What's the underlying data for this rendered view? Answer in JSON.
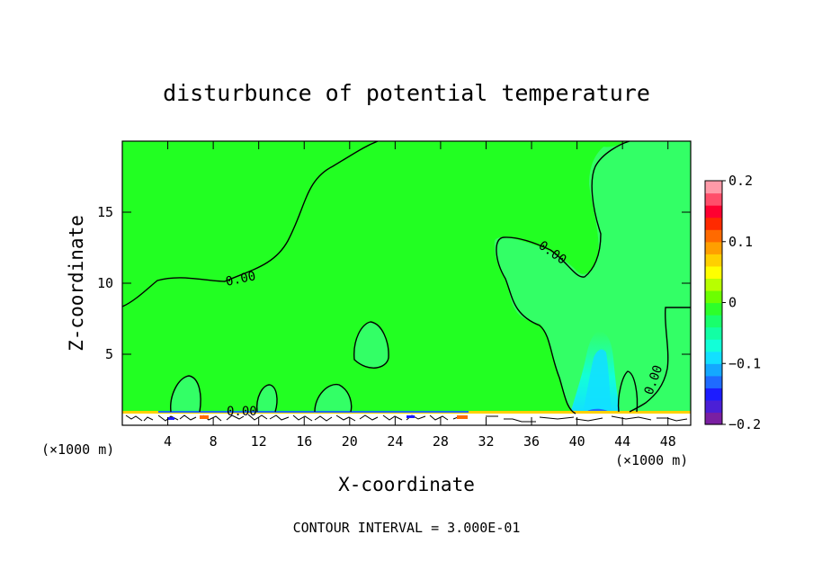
{
  "chart_data": {
    "type": "heatmap",
    "title": "disturbunce of potential temperature",
    "xlabel": "X-coordinate",
    "ylabel": "Z-coordinate",
    "x_unit_left": "(×1000 m)",
    "x_unit_right": "(×1000 m)",
    "xlim": [
      0,
      50
    ],
    "ylim": [
      0,
      20
    ],
    "x_ticks": [
      4,
      8,
      12,
      16,
      20,
      24,
      28,
      32,
      36,
      40,
      44,
      48
    ],
    "y_ticks": [
      5,
      10,
      15
    ],
    "contour_labels": [
      "0.00",
      "0.00",
      "0.00",
      "0.00"
    ],
    "contour_interval_text": "CONTOUR INTERVAL = 3.000E-01",
    "colorbar": {
      "ticks": [
        0.2,
        0.1,
        0,
        -0.1,
        -0.2
      ],
      "tick_labels": [
        "0.2",
        "0.1",
        "0",
        "−0.1",
        "−0.2"
      ],
      "range": [
        -0.2,
        0.2
      ],
      "colors": [
        "#7a1fa2",
        "#4b1fd6",
        "#1c1cff",
        "#1f6bff",
        "#14a8ff",
        "#12e0ff",
        "#12ffd8",
        "#12ffa4",
        "#19ff6c",
        "#2dff2a",
        "#6cff00",
        "#b8ff00",
        "#ffff00",
        "#ffd000",
        "#ff9f00",
        "#ff6a00",
        "#ff2a00",
        "#ff0030",
        "#ff4e6a",
        "#ff9aa8"
      ]
    },
    "background_color": "#22ff22",
    "region_color": "#33ff66"
  }
}
